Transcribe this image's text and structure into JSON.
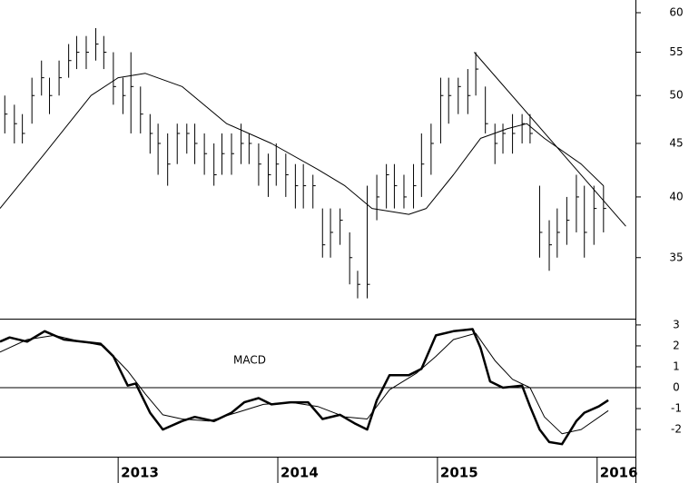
{
  "chart_data": [
    {
      "type": "ohlc",
      "log_scale": true,
      "xlim": [
        2012.26,
        2016.24
      ],
      "ylim": [
        30.6,
        61.7
      ],
      "yticks": [
        35,
        40,
        45,
        50,
        55,
        60
      ],
      "color": "#000000",
      "x": [
        2012.29,
        2012.35,
        2012.4,
        2012.46,
        2012.52,
        2012.57,
        2012.63,
        2012.69,
        2012.74,
        2012.8,
        2012.86,
        2012.91,
        2012.97,
        2013.03,
        2013.08,
        2013.14,
        2013.2,
        2013.25,
        2013.31,
        2013.37,
        2013.43,
        2013.48,
        2013.54,
        2013.6,
        2013.65,
        2013.71,
        2013.77,
        2013.82,
        2013.88,
        2013.94,
        2013.99,
        2014.05,
        2014.11,
        2014.16,
        2014.22,
        2014.28,
        2014.33,
        2014.39,
        2014.45,
        2014.5,
        2014.56,
        2014.62,
        2014.68,
        2014.73,
        2014.79,
        2014.85,
        2014.9,
        2014.96,
        2015.02,
        2015.07,
        2015.13,
        2015.19,
        2015.24,
        2015.3,
        2015.36,
        2015.41,
        2015.47,
        2015.53,
        2015.58,
        2015.64,
        2015.7,
        2015.75,
        2015.81,
        2015.87,
        2015.92,
        2015.98,
        2016.04
      ],
      "high": [
        50,
        49,
        48,
        52,
        54,
        52,
        54,
        56,
        57,
        57,
        58,
        57,
        55,
        52,
        55,
        51,
        48,
        47,
        46,
        47,
        47,
        47,
        46,
        45,
        46,
        46,
        47,
        46,
        45,
        44,
        45,
        44,
        43,
        43,
        42,
        39,
        39,
        39,
        37,
        34,
        41,
        42,
        43,
        43,
        42,
        43,
        46,
        47,
        52,
        52,
        52,
        53,
        55,
        51,
        47,
        47,
        48,
        48,
        48,
        41,
        38,
        39,
        40,
        42,
        41,
        41,
        41
      ],
      "low": [
        46,
        45,
        45,
        47,
        50,
        48,
        50,
        52,
        53,
        53,
        54,
        53,
        49,
        48,
        46,
        46,
        44,
        42,
        41,
        43,
        44,
        43,
        42,
        41,
        42,
        42,
        43,
        43,
        41,
        40,
        41,
        40,
        39,
        39,
        39,
        35,
        35,
        36,
        33,
        32,
        32,
        38,
        39,
        39,
        39,
        39,
        40,
        42,
        45,
        47,
        48,
        48,
        50,
        46,
        43,
        44,
        44,
        45,
        45,
        35,
        34,
        35,
        36,
        37,
        35,
        36,
        37
      ],
      "close": [
        48,
        47,
        46,
        50,
        52,
        50,
        52,
        54,
        55,
        55,
        56,
        55,
        51,
        50,
        51,
        48,
        46,
        45,
        43,
        46,
        46,
        45,
        44,
        42,
        44,
        44,
        45,
        45,
        43,
        42,
        43,
        42,
        41,
        41,
        41,
        36,
        37,
        38,
        35,
        33,
        33,
        40,
        42,
        41,
        40,
        41,
        43,
        45,
        50,
        50,
        51,
        50,
        53,
        47,
        45,
        46,
        46,
        47,
        46,
        37,
        36,
        37,
        38,
        40,
        37,
        39,
        39
      ],
      "lines": [
        {
          "x": [
            2012.26,
            2012.54,
            2012.83,
            2013.0,
            2013.17,
            2013.4,
            2013.68,
            2013.96,
            2014.25,
            2014.42,
            2014.59,
            2014.82,
            2014.93,
            2015.1,
            2015.27,
            2015.44,
            2015.56,
            2015.67,
            2015.9,
            2016.04
          ],
          "values": [
            39,
            44,
            50,
            52,
            52.5,
            51,
            47,
            45,
            42.5,
            41,
            39,
            38.5,
            39,
            42,
            45.5,
            46.5,
            47,
            45.5,
            43,
            41
          ],
          "color": "#000000"
        },
        {
          "x": [
            2015.23,
            2016.18
          ],
          "values": [
            55,
            37.5
          ],
          "color": "#000000"
        }
      ]
    },
    {
      "type": "line",
      "annotation": "MACD",
      "zero_line": true,
      "xlim": [
        2012.26,
        2016.24
      ],
      "ylim": [
        -3.3,
        3.3
      ],
      "yticks": [
        -2,
        -1,
        0,
        1,
        2,
        3
      ],
      "xticks": [
        2013,
        2014,
        2015,
        2016
      ],
      "series": [
        {
          "color": "#000000",
          "width": 2.5,
          "x": [
            2012.26,
            2012.32,
            2012.43,
            2012.54,
            2012.66,
            2012.77,
            2012.89,
            2012.97,
            2013.06,
            2013.11,
            2013.2,
            2013.28,
            2013.4,
            2013.48,
            2013.6,
            2013.71,
            2013.79,
            2013.88,
            2013.96,
            2014.08,
            2014.19,
            2014.28,
            2014.39,
            2014.48,
            2014.56,
            2014.62,
            2014.7,
            2014.82,
            2014.9,
            2014.99,
            2015.1,
            2015.22,
            2015.27,
            2015.33,
            2015.41,
            2015.53,
            2015.58,
            2015.64,
            2015.7,
            2015.78,
            2015.87,
            2015.92,
            2016.01,
            2016.07
          ],
          "values": [
            2.2,
            2.4,
            2.2,
            2.7,
            2.3,
            2.2,
            2.1,
            1.5,
            0.1,
            0.2,
            -1.2,
            -2.0,
            -1.6,
            -1.4,
            -1.6,
            -1.2,
            -0.7,
            -0.5,
            -0.8,
            -0.7,
            -0.7,
            -1.5,
            -1.3,
            -1.7,
            -2.0,
            -0.6,
            0.6,
            0.6,
            0.9,
            2.5,
            2.7,
            2.8,
            1.9,
            0.3,
            0.0,
            0.1,
            -0.9,
            -2.0,
            -2.6,
            -2.7,
            -1.6,
            -1.2,
            -0.9,
            -0.6
          ]
        },
        {
          "color": "#000000",
          "width": 1,
          "x": [
            2012.26,
            2012.43,
            2012.6,
            2012.77,
            2012.91,
            2013.06,
            2013.17,
            2013.28,
            2013.4,
            2013.57,
            2013.74,
            2013.91,
            2014.08,
            2014.25,
            2014.42,
            2014.56,
            2014.7,
            2014.87,
            2014.99,
            2015.1,
            2015.24,
            2015.36,
            2015.47,
            2015.58,
            2015.67,
            2015.78,
            2015.9,
            2016.07
          ],
          "values": [
            1.7,
            2.3,
            2.5,
            2.2,
            2.0,
            0.8,
            -0.3,
            -1.3,
            -1.5,
            -1.6,
            -1.2,
            -0.8,
            -0.7,
            -0.9,
            -1.4,
            -1.5,
            -0.1,
            0.7,
            1.5,
            2.3,
            2.6,
            1.3,
            0.4,
            0.0,
            -1.4,
            -2.2,
            -2.0,
            -1.1
          ]
        }
      ]
    }
  ]
}
